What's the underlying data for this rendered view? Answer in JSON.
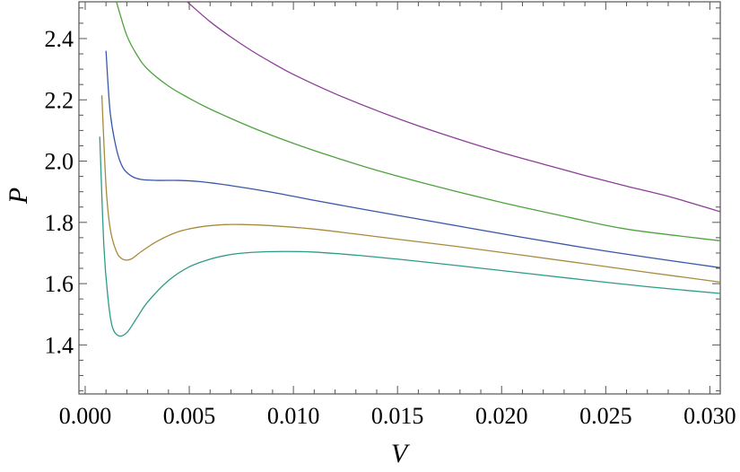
{
  "chart_data": {
    "type": "line",
    "title": "",
    "xlabel": "V",
    "ylabel": "P",
    "xlim": [
      -0.0003,
      0.0305
    ],
    "ylim": [
      1.24,
      2.52
    ],
    "xticks": [
      0.0,
      0.005,
      0.01,
      0.015,
      0.02,
      0.025,
      0.03
    ],
    "xtick_labels": [
      "0.000",
      "0.005",
      "0.010",
      "0.015",
      "0.020",
      "0.025",
      "0.030"
    ],
    "yticks": [
      1.4,
      1.6,
      1.8,
      2.0,
      2.2,
      2.4
    ],
    "ytick_labels": [
      "1.4",
      "1.6",
      "1.8",
      "2.0",
      "2.2",
      "2.4"
    ],
    "grid": false,
    "legend": "none",
    "series": [
      {
        "color": "#2e9b87",
        "points": [
          [
            0.0007,
            2.08
          ],
          [
            0.0009,
            1.72
          ],
          [
            0.0011,
            1.55
          ],
          [
            0.0013,
            1.46
          ],
          [
            0.0016,
            1.43
          ],
          [
            0.002,
            1.44
          ],
          [
            0.0025,
            1.49
          ],
          [
            0.003,
            1.54
          ],
          [
            0.004,
            1.61
          ],
          [
            0.005,
            1.655
          ],
          [
            0.006,
            1.68
          ],
          [
            0.007,
            1.695
          ],
          [
            0.008,
            1.702
          ],
          [
            0.0095,
            1.705
          ],
          [
            0.011,
            1.703
          ],
          [
            0.013,
            1.693
          ],
          [
            0.015,
            1.68
          ],
          [
            0.018,
            1.658
          ],
          [
            0.021,
            1.635
          ],
          [
            0.024,
            1.612
          ],
          [
            0.027,
            1.59
          ],
          [
            0.0305,
            1.568
          ]
        ]
      },
      {
        "color": "#a78a3c",
        "points": [
          [
            0.0008,
            2.215
          ],
          [
            0.001,
            1.92
          ],
          [
            0.0012,
            1.78
          ],
          [
            0.0015,
            1.705
          ],
          [
            0.0018,
            1.68
          ],
          [
            0.0022,
            1.68
          ],
          [
            0.0027,
            1.705
          ],
          [
            0.0035,
            1.74
          ],
          [
            0.0045,
            1.77
          ],
          [
            0.0055,
            1.785
          ],
          [
            0.0065,
            1.792
          ],
          [
            0.0075,
            1.793
          ],
          [
            0.009,
            1.789
          ],
          [
            0.011,
            1.778
          ],
          [
            0.013,
            1.762
          ],
          [
            0.015,
            1.745
          ],
          [
            0.018,
            1.72
          ],
          [
            0.021,
            1.693
          ],
          [
            0.024,
            1.665
          ],
          [
            0.027,
            1.637
          ],
          [
            0.0305,
            1.605
          ]
        ]
      },
      {
        "color": "#3857a8",
        "points": [
          [
            0.001,
            2.36
          ],
          [
            0.0012,
            2.16
          ],
          [
            0.0015,
            2.04
          ],
          [
            0.0018,
            1.98
          ],
          [
            0.0022,
            1.952
          ],
          [
            0.0027,
            1.94
          ],
          [
            0.0035,
            1.937
          ],
          [
            0.0045,
            1.937
          ],
          [
            0.0055,
            1.933
          ],
          [
            0.007,
            1.92
          ],
          [
            0.009,
            1.898
          ],
          [
            0.011,
            1.872
          ],
          [
            0.013,
            1.847
          ],
          [
            0.015,
            1.823
          ],
          [
            0.018,
            1.787
          ],
          [
            0.021,
            1.751
          ],
          [
            0.024,
            1.717
          ],
          [
            0.027,
            1.686
          ],
          [
            0.0305,
            1.652
          ]
        ]
      },
      {
        "color": "#4ea33f",
        "points": [
          [
            0.0015,
            2.52
          ],
          [
            0.002,
            2.41
          ],
          [
            0.0025,
            2.345
          ],
          [
            0.003,
            2.3
          ],
          [
            0.004,
            2.245
          ],
          [
            0.005,
            2.205
          ],
          [
            0.006,
            2.17
          ],
          [
            0.008,
            2.11
          ],
          [
            0.01,
            2.058
          ],
          [
            0.012,
            2.012
          ],
          [
            0.014,
            1.97
          ],
          [
            0.017,
            1.915
          ],
          [
            0.02,
            1.865
          ],
          [
            0.023,
            1.82
          ],
          [
            0.026,
            1.778
          ],
          [
            0.0305,
            1.74
          ]
        ]
      },
      {
        "color": "#8e3e98",
        "points": [
          [
            0.0049,
            2.52
          ],
          [
            0.006,
            2.455
          ],
          [
            0.007,
            2.405
          ],
          [
            0.008,
            2.36
          ],
          [
            0.009,
            2.32
          ],
          [
            0.01,
            2.283
          ],
          [
            0.012,
            2.22
          ],
          [
            0.014,
            2.165
          ],
          [
            0.016,
            2.115
          ],
          [
            0.018,
            2.07
          ],
          [
            0.02,
            2.028
          ],
          [
            0.022,
            1.99
          ],
          [
            0.024,
            1.953
          ],
          [
            0.026,
            1.918
          ],
          [
            0.028,
            1.885
          ],
          [
            0.0305,
            1.835
          ]
        ]
      }
    ]
  }
}
